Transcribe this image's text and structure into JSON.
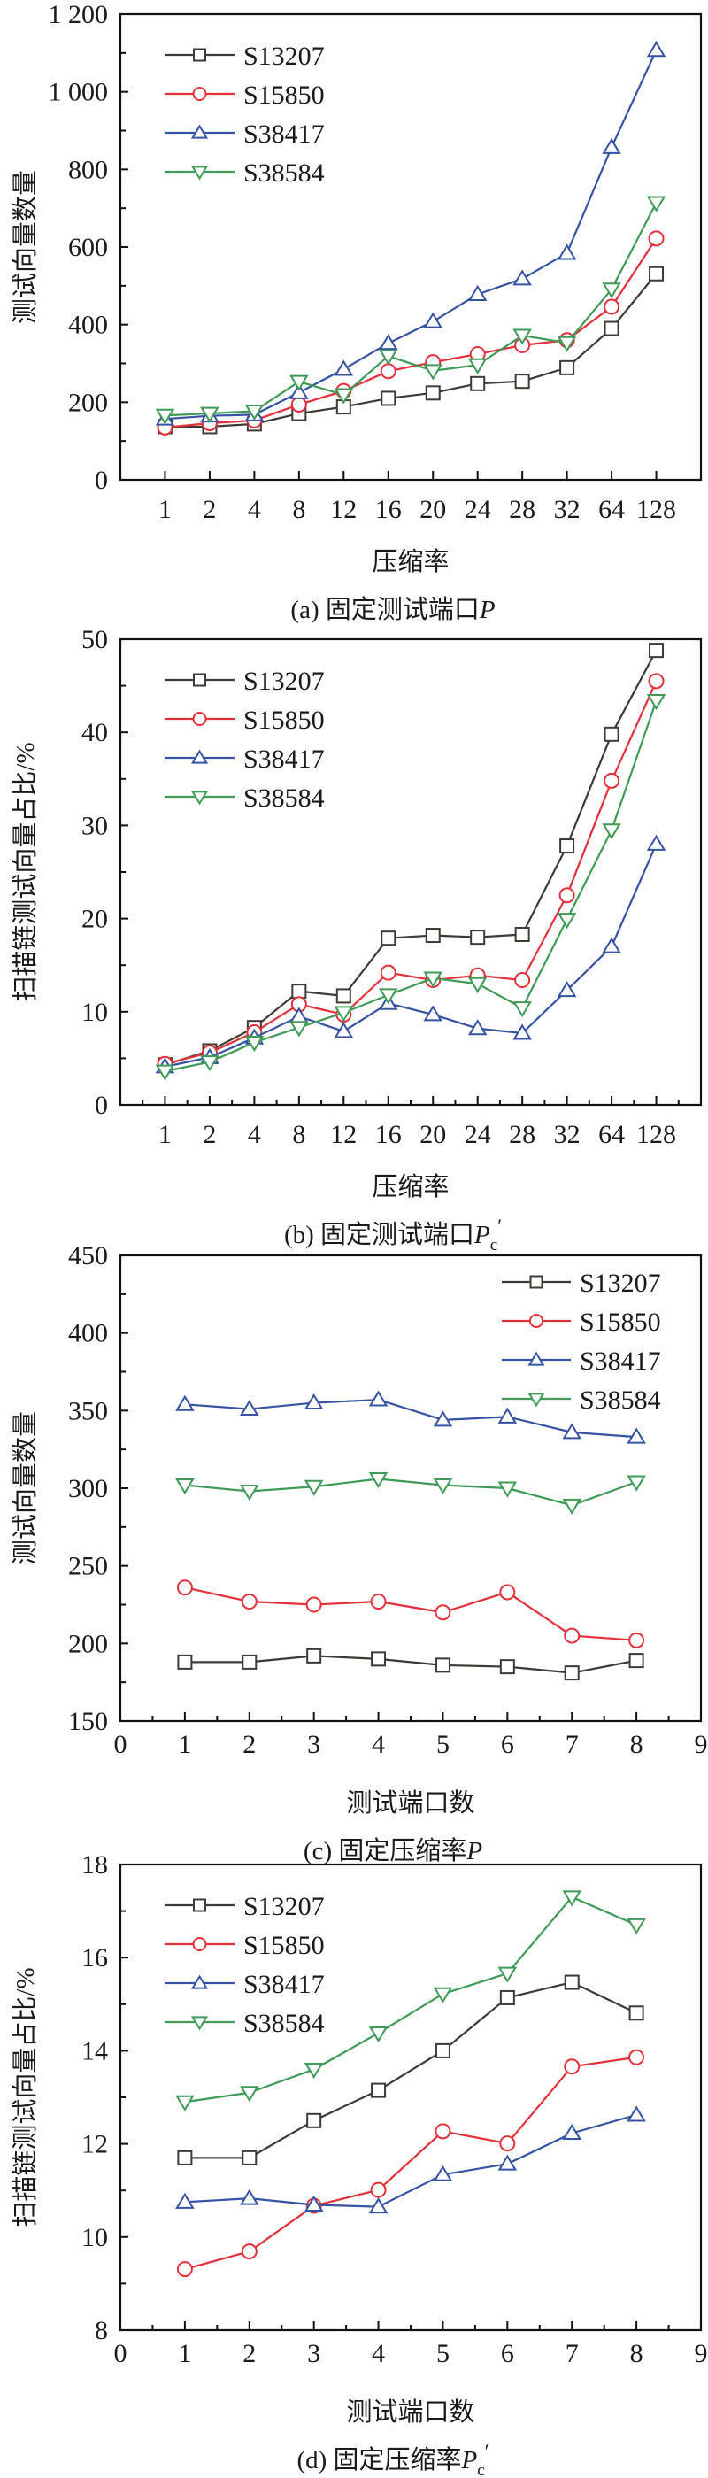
{
  "figure": {
    "series_styles": [
      {
        "name": "S13207",
        "color": "#3f3a36",
        "marker": "square"
      },
      {
        "name": "S15850",
        "color": "#e4303a",
        "marker": "circle"
      },
      {
        "name": "S38417",
        "color": "#3653a3",
        "marker": "triangle-up"
      },
      {
        "name": "S38584",
        "color": "#3f9a57",
        "marker": "triangle-down"
      }
    ]
  },
  "chart_data": [
    {
      "id": "a",
      "type": "line",
      "caption_prefix": "(a) 固定测试端口",
      "caption_var": "P",
      "caption_sub": "",
      "caption_prime": "",
      "xlabel": "压缩率",
      "ylabel": "测试向量数量",
      "x_type": "category",
      "categories": [
        "1",
        "2",
        "4",
        "8",
        "12",
        "16",
        "20",
        "24",
        "28",
        "32",
        "64",
        "128"
      ],
      "ylim": [
        0,
        1200
      ],
      "yticks": [
        0,
        200,
        400,
        600,
        800,
        1000,
        1200
      ],
      "ytick_labels": [
        "0",
        "200",
        "400",
        "600",
        "800",
        "1 000",
        "1 200"
      ],
      "legend": "top-left",
      "grid": false,
      "series": [
        {
          "name": "S13207",
          "values": [
            137,
            137,
            144,
            171,
            188,
            210,
            224,
            248,
            254,
            289,
            390,
            531
          ]
        },
        {
          "name": "S15850",
          "values": [
            135,
            146,
            153,
            194,
            229,
            280,
            303,
            324,
            347,
            360,
            446,
            622
          ]
        },
        {
          "name": "S38417",
          "values": [
            157,
            165,
            168,
            225,
            285,
            352,
            408,
            478,
            518,
            584,
            857,
            1107
          ]
        },
        {
          "name": "S38584",
          "values": [
            166,
            171,
            177,
            253,
            219,
            319,
            281,
            296,
            372,
            353,
            491,
            714
          ]
        }
      ]
    },
    {
      "id": "b",
      "type": "line",
      "caption_prefix": "(b) 固定测试端口",
      "caption_var": "P",
      "caption_sub": "c",
      "caption_prime": "′",
      "xlabel": "压缩率",
      "ylabel": "扫描链测试向量占比/%",
      "x_type": "category",
      "categories": [
        "1",
        "2",
        "4",
        "8",
        "12",
        "16",
        "20",
        "24",
        "28",
        "32",
        "64",
        "128"
      ],
      "ylim": [
        0,
        50
      ],
      "yticks": [
        0,
        10,
        20,
        30,
        40,
        50
      ],
      "ytick_labels": [
        "0",
        "10",
        "20",
        "30",
        "40",
        "50"
      ],
      "legend": "top-left",
      "grid": false,
      "series": [
        {
          "name": "S13207",
          "values": [
            4.3,
            5.8,
            8.3,
            12.2,
            11.7,
            17.9,
            18.2,
            18.0,
            18.3,
            27.8,
            39.8,
            48.8
          ]
        },
        {
          "name": "S15850",
          "values": [
            4.4,
            5.6,
            7.8,
            10.8,
            9.7,
            14.2,
            13.4,
            13.9,
            13.4,
            22.5,
            34.8,
            45.5
          ]
        },
        {
          "name": "S38417",
          "values": [
            4.1,
            5.1,
            7.2,
            9.5,
            7.9,
            10.9,
            9.7,
            8.2,
            7.7,
            12.3,
            17.0,
            28.0
          ]
        },
        {
          "name": "S38584",
          "values": [
            3.6,
            4.6,
            6.7,
            8.3,
            9.9,
            11.8,
            13.6,
            13.0,
            10.4,
            19.9,
            29.5,
            43.4
          ]
        }
      ]
    },
    {
      "id": "c",
      "type": "line",
      "caption_prefix": "(c) 固定压缩率",
      "caption_var": "P",
      "caption_sub": "",
      "caption_prime": "",
      "xlabel": "测试端口数",
      "ylabel": "测试向量数量",
      "x_type": "numeric",
      "x": [
        1,
        2,
        3,
        4,
        5,
        6,
        7,
        8
      ],
      "xlim": [
        0,
        9
      ],
      "xticks": [
        0,
        1,
        2,
        3,
        4,
        5,
        6,
        7,
        8,
        9
      ],
      "ylim": [
        150,
        450
      ],
      "yticks": [
        150,
        200,
        250,
        300,
        350,
        400,
        450
      ],
      "ytick_labels": [
        "150",
        "200",
        "250",
        "300",
        "350",
        "400",
        "450"
      ],
      "legend": "top-right",
      "grid": false,
      "series": [
        {
          "name": "S13207",
          "values": [
            188,
            188,
            192,
            190,
            186,
            185,
            181,
            189
          ]
        },
        {
          "name": "S15850",
          "values": [
            236,
            227,
            225,
            227,
            220,
            233,
            205,
            202
          ]
        },
        {
          "name": "S38417",
          "values": [
            354,
            351,
            355,
            357,
            344,
            346,
            336,
            333
          ]
        },
        {
          "name": "S38584",
          "values": [
            302,
            298,
            301,
            306,
            302,
            300,
            289,
            304
          ]
        }
      ]
    },
    {
      "id": "d",
      "type": "line",
      "caption_prefix": "(d) 固定压缩率",
      "caption_var": "P",
      "caption_sub": "c",
      "caption_prime": "′",
      "xlabel": "测试端口数",
      "ylabel": "扫描链测试向量占比/%",
      "x_type": "numeric",
      "x": [
        1,
        2,
        3,
        4,
        5,
        6,
        7,
        8
      ],
      "xlim": [
        0,
        9
      ],
      "xticks": [
        0,
        1,
        2,
        3,
        4,
        5,
        6,
        7,
        8,
        9
      ],
      "ylim": [
        8,
        18
      ],
      "yticks": [
        8,
        10,
        12,
        14,
        16,
        18
      ],
      "ytick_labels": [
        "8",
        "10",
        "12",
        "14",
        "16",
        "18"
      ],
      "legend": "top-left",
      "grid": false,
      "series": [
        {
          "name": "S13207",
          "values": [
            11.7,
            11.7,
            12.5,
            13.15,
            14.0,
            15.14,
            15.47,
            14.81
          ]
        },
        {
          "name": "S15850",
          "values": [
            9.31,
            9.69,
            10.67,
            11.01,
            12.27,
            12.01,
            13.66,
            13.86
          ]
        },
        {
          "name": "S38417",
          "values": [
            10.75,
            10.83,
            10.69,
            10.65,
            11.34,
            11.57,
            12.23,
            12.62
          ]
        },
        {
          "name": "S38584",
          "values": [
            12.9,
            13.1,
            13.6,
            14.38,
            15.22,
            15.66,
            17.3,
            16.7
          ]
        }
      ]
    }
  ]
}
